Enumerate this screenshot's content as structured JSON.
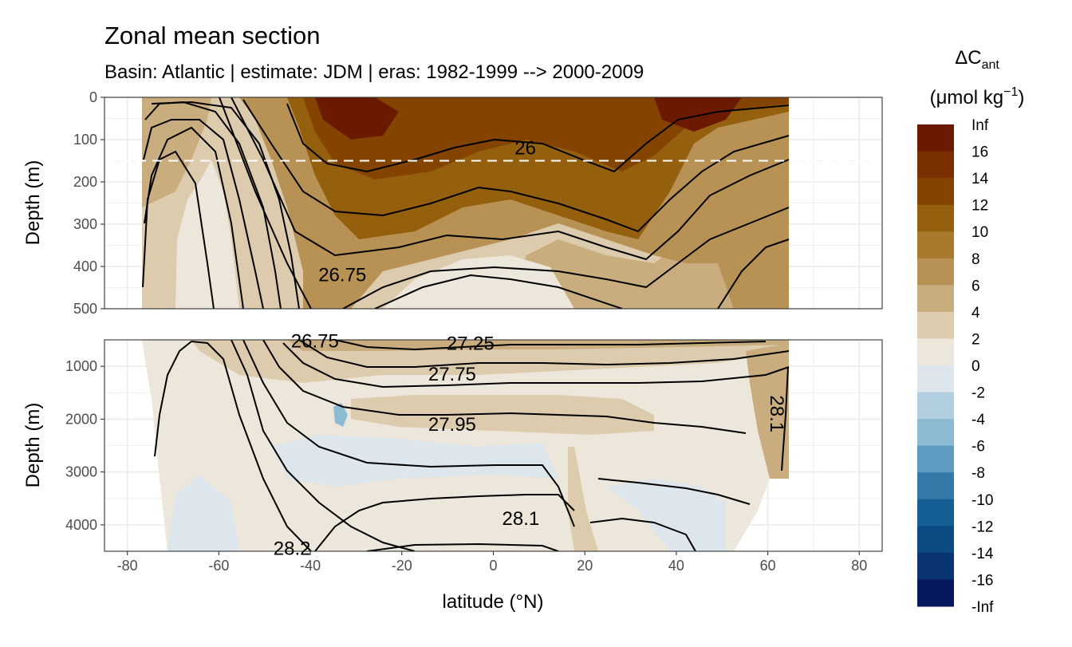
{
  "chart_data": {
    "type": "heatmap",
    "title": "Zonal mean section",
    "subtitle": "Basin: Atlantic | estimate: JDM  | eras: 1982-1999 --> 2000-2009",
    "xlabel": "latitude (°N)",
    "ylabel": "Depth (m)",
    "xlim": [
      -85,
      85
    ],
    "x_ticks": [
      -80,
      -60,
      -40,
      -20,
      0,
      20,
      40,
      60,
      80
    ],
    "x_tick_labels": [
      "-80",
      "-60",
      "-40",
      "-20",
      "0",
      "20",
      "40",
      "60",
      "80"
    ],
    "data_lat_range": [
      -77,
      64
    ],
    "panels": [
      {
        "name": "upper",
        "ylim": [
          0,
          500
        ],
        "y_ticks": [
          0,
          100,
          200,
          300,
          400,
          500
        ],
        "y_tick_labels": [
          "0",
          "100",
          "200",
          "300",
          "400",
          "500"
        ],
        "reference_line_depth": 150
      },
      {
        "name": "lower",
        "ylim": [
          500,
          4500
        ],
        "y_ticks": [
          1000,
          2000,
          3000,
          4000
        ],
        "y_tick_labels": [
          "1000",
          "2000",
          "3000",
          "4000"
        ]
      }
    ],
    "contour_labels": [
      {
        "text": "26",
        "lat": 7,
        "depth": 120,
        "panel": "upper"
      },
      {
        "text": "26.75",
        "lat": -33,
        "depth": 420,
        "panel": "upper"
      },
      {
        "text": "27.25",
        "lat": -5,
        "depth": 570,
        "panel": "lower"
      },
      {
        "text": "27.75",
        "lat": -9,
        "depth": 1150,
        "panel": "lower"
      },
      {
        "text": "27.95",
        "lat": -9,
        "depth": 2100,
        "panel": "lower"
      },
      {
        "text": "28.1",
        "lat": 6,
        "depth": 3880,
        "panel": "lower"
      },
      {
        "text": "28.2",
        "lat": -44,
        "depth": 4450,
        "panel": "lower"
      },
      {
        "text": "26.75",
        "lat": -39,
        "depth": 520,
        "panel": "lower"
      },
      {
        "text": "28.1",
        "lat": 62,
        "depth": 1900,
        "panel": "lower"
      }
    ],
    "legend": {
      "title": "ΔC",
      "title_subscript": "ant",
      "unit": "(μmol kg",
      "unit_superscript": "−1",
      "unit_close": ")",
      "labels": [
        "Inf",
        "16",
        "14",
        "12",
        "10",
        "8",
        "6",
        "4",
        "2",
        "0",
        "-2",
        "-4",
        "-6",
        "-8",
        "-10",
        "-12",
        "-14",
        "-16",
        "-Inf"
      ],
      "colors": [
        "#6b1a00",
        "#7a2f00",
        "#844400",
        "#94600e",
        "#a97a2e",
        "#b89154",
        "#c9ad7e",
        "#ddcbad",
        "#ede6da",
        "#dce6ec",
        "#b2cfdf",
        "#8cbad2",
        "#5e9bc0",
        "#3479a8",
        "#145f95",
        "#0c4a84",
        "#0a3471",
        "#07185e"
      ]
    }
  }
}
